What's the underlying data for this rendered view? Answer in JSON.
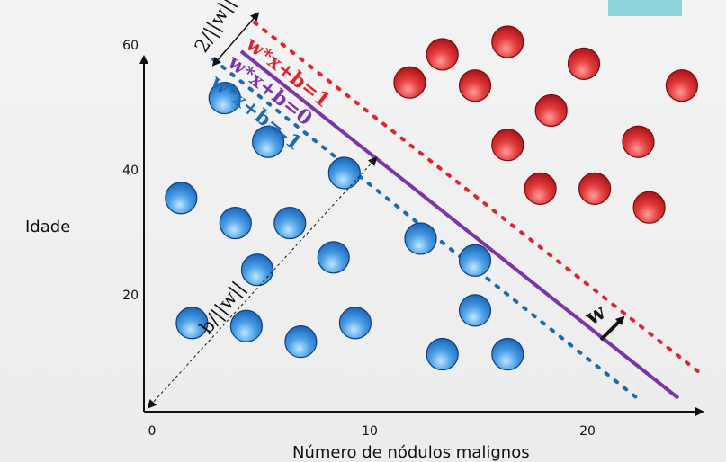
{
  "axes": {
    "xlabel": "Número de nódulos malignos",
    "ylabel": "Idade",
    "xticks": [
      "0",
      "10",
      "20"
    ],
    "yticks": [
      "20",
      "40",
      "60"
    ]
  },
  "lines": {
    "upper": "w*x+b=1",
    "middle": "w*x+b=0",
    "lower": "w*x+b=-1"
  },
  "annotations": {
    "margin": "2/||w||",
    "offset": "b/||w||",
    "normal": "w"
  },
  "colors": {
    "upper": "#e0242f",
    "middle": "#7b35a8",
    "lower": "#1a6bb5",
    "corner_box": "#8fd3dc"
  },
  "chart_data": {
    "type": "scatter",
    "xlabel": "Número de nódulos malignos",
    "ylabel": "Idade",
    "xlim": [
      0,
      25
    ],
    "ylim": [
      8,
      62
    ],
    "series": [
      {
        "color": "#2f7fd0",
        "points": [
          [
            2,
            15.5
          ],
          [
            1.5,
            35.5
          ],
          [
            3.5,
            51.5
          ],
          [
            4,
            31.5
          ],
          [
            4.5,
            15
          ],
          [
            5,
            24
          ],
          [
            5.5,
            44.5
          ],
          [
            6.5,
            31.5
          ],
          [
            7,
            12.5
          ],
          [
            8.5,
            26
          ],
          [
            9,
            39.5
          ],
          [
            9.5,
            15.5
          ],
          [
            12.5,
            29
          ],
          [
            13.5,
            10.5
          ],
          [
            15,
            17.5
          ],
          [
            15,
            25.5
          ],
          [
            16.5,
            10.5
          ]
        ]
      },
      {
        "color": "#d8262e",
        "points": [
          [
            12,
            54
          ],
          [
            13.5,
            58.5
          ],
          [
            15,
            53.5
          ],
          [
            16.5,
            44
          ],
          [
            16.5,
            60.5
          ],
          [
            18,
            37
          ],
          [
            18.5,
            49.5
          ],
          [
            20,
            57
          ],
          [
            20.5,
            37
          ],
          [
            22.5,
            44.5
          ],
          [
            23,
            34
          ],
          [
            24.5,
            53.5
          ]
        ]
      }
    ]
  }
}
